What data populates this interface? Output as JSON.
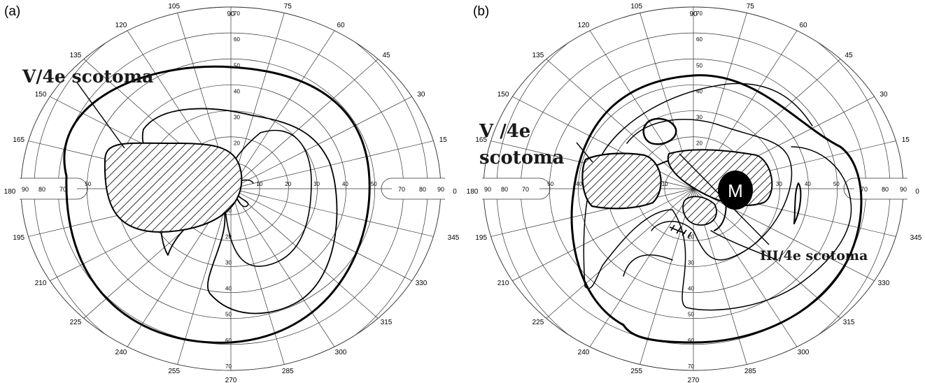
{
  "panels": [
    {
      "label": "(a)",
      "angle_labels": [
        "0",
        "15",
        "30",
        "45",
        "60",
        "75",
        "90",
        "105",
        "120",
        "135",
        "150",
        "165",
        "180",
        "195",
        "210",
        "225",
        "240",
        "255",
        "270",
        "285",
        "300",
        "315",
        "330",
        "345"
      ],
      "ring_labels": [
        "10",
        "20",
        "30",
        "40",
        "50",
        "60",
        "70"
      ],
      "axis_labels": [
        "90",
        "80",
        "70"
      ],
      "annotations": [
        {
          "id": "v4e",
          "text": "V/4e scotoma"
        }
      ],
      "markers": []
    },
    {
      "label": "(b)",
      "angle_labels": [
        "0",
        "15",
        "30",
        "45",
        "60",
        "75",
        "90",
        "105",
        "120",
        "135",
        "150",
        "165",
        "180",
        "195",
        "210",
        "225",
        "240",
        "255",
        "270",
        "285",
        "300",
        "315",
        "330",
        "345"
      ],
      "ring_labels": [
        "10",
        "20",
        "30",
        "40",
        "50",
        "60",
        "70"
      ],
      "axis_labels": [
        "90",
        "80",
        "70"
      ],
      "annotations": [
        {
          "id": "v4e-1",
          "text": "V /4e"
        },
        {
          "id": "v4e-2",
          "text": "scotoma"
        },
        {
          "id": "iii4e",
          "text": "III/4e scotoma"
        }
      ],
      "markers": [
        {
          "id": "macula",
          "text": "M",
          "color": "#000000"
        }
      ]
    }
  ],
  "colors": {
    "line": "#000000",
    "grid": "#333333",
    "background": "#ffffff"
  }
}
